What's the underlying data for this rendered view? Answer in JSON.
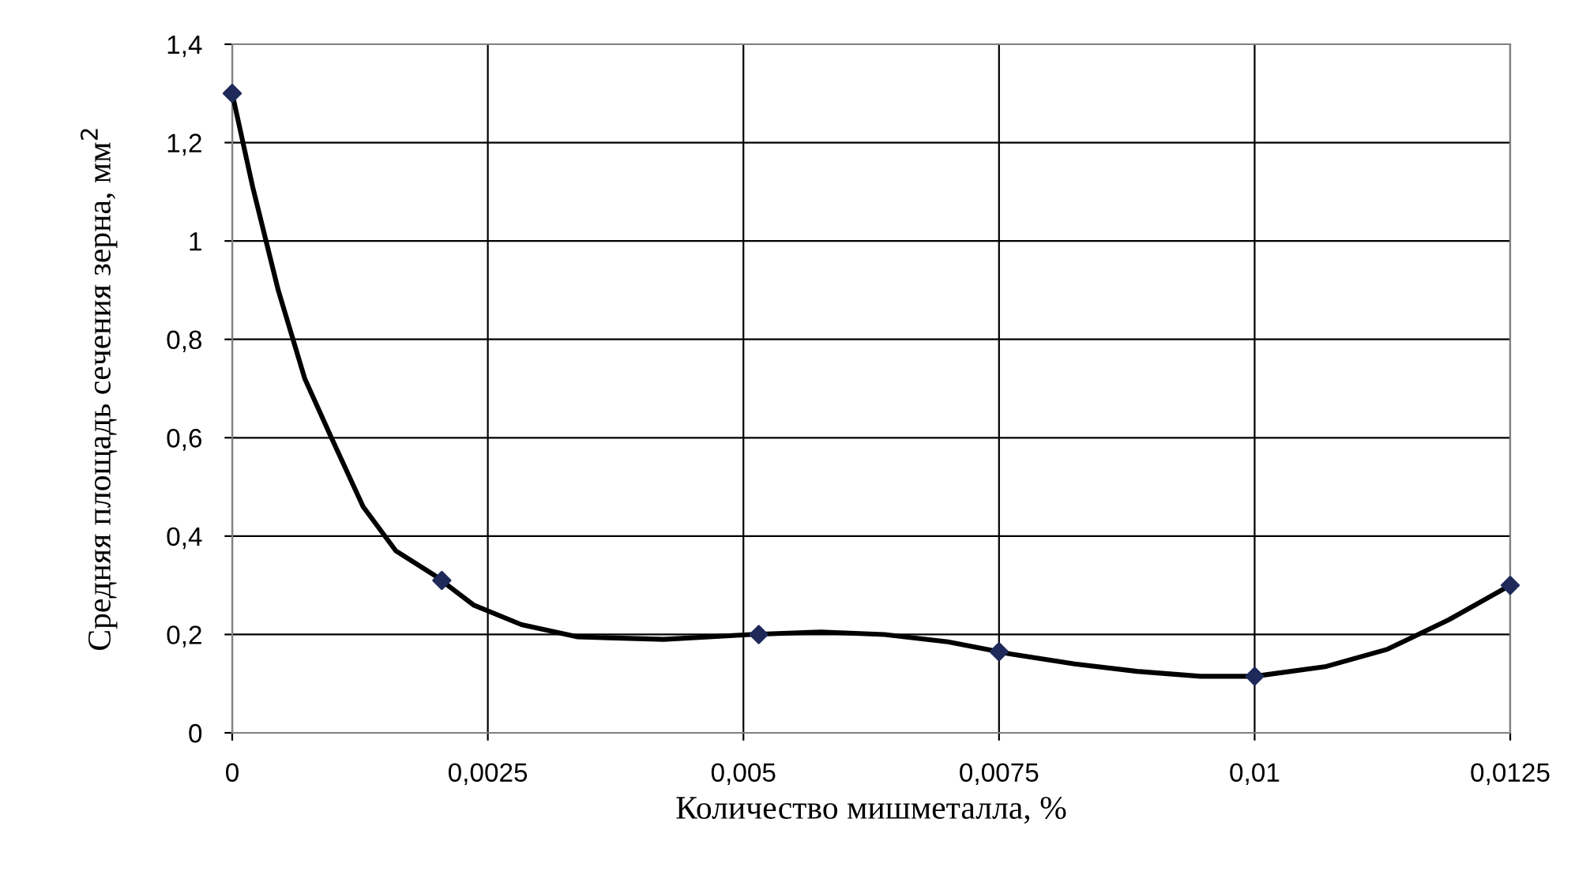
{
  "chart_data": {
    "type": "line",
    "xlabel": "Количество мишметалла, %",
    "ylabel": "Средняя площадь сечения зерна, мм$^{2}$",
    "xlim": [
      0,
      0.0125
    ],
    "ylim": [
      0,
      1.4
    ],
    "xticks": [
      0,
      {
        "value": 0.0025,
        "label": "0,0025"
      },
      {
        "value": 0.005,
        "label": "0,005"
      },
      {
        "value": 0.0075,
        "label": "0,0075"
      },
      {
        "value": 0.01,
        "label": "0,01"
      },
      {
        "value": 0.0125,
        "label": "0,0125"
      }
    ],
    "yticks": [
      0,
      {
        "value": 0.2,
        "label": "0,2"
      },
      {
        "value": 0.4,
        "label": "0,4"
      },
      {
        "value": 0.6,
        "label": "0,6"
      },
      {
        "value": 0.8,
        "label": "0,8"
      },
      1,
      {
        "value": 1.2,
        "label": "1,2"
      },
      {
        "value": 1.4,
        "label": "1,4"
      }
    ],
    "grid": true,
    "series": [
      {
        "color": "#000000",
        "marker": "none",
        "line_style": "solid",
        "x": [
          0,
          0.0002,
          0.00045,
          0.00071,
          0.00097,
          0.00128,
          0.0016,
          0.00198,
          0.00236,
          0.00283,
          0.00338,
          0.00422,
          0.00507,
          0.00576,
          0.00638,
          0.007,
          0.00762,
          0.00824,
          0.00885,
          0.00947,
          0.01,
          0.0107,
          0.0113,
          0.0119,
          0.0125
        ],
        "values": [
          1.3,
          1.11,
          0.9,
          0.72,
          0.6,
          0.46,
          0.37,
          0.32,
          0.26,
          0.22,
          0.195,
          0.19,
          0.2,
          0.205,
          0.2,
          0.185,
          0.16,
          0.14,
          0.125,
          0.115,
          0.115,
          0.135,
          0.17,
          0.23,
          0.3
        ]
      },
      {
        "type": "scatter",
        "color": "#1f2a5a",
        "marker": "diamond",
        "x": [
          0,
          0.00205,
          0.00515,
          0.0075,
          0.01,
          0.0125
        ],
        "values": [
          1.3,
          0.31,
          0.2,
          0.165,
          0.115,
          0.3
        ]
      }
    ]
  }
}
